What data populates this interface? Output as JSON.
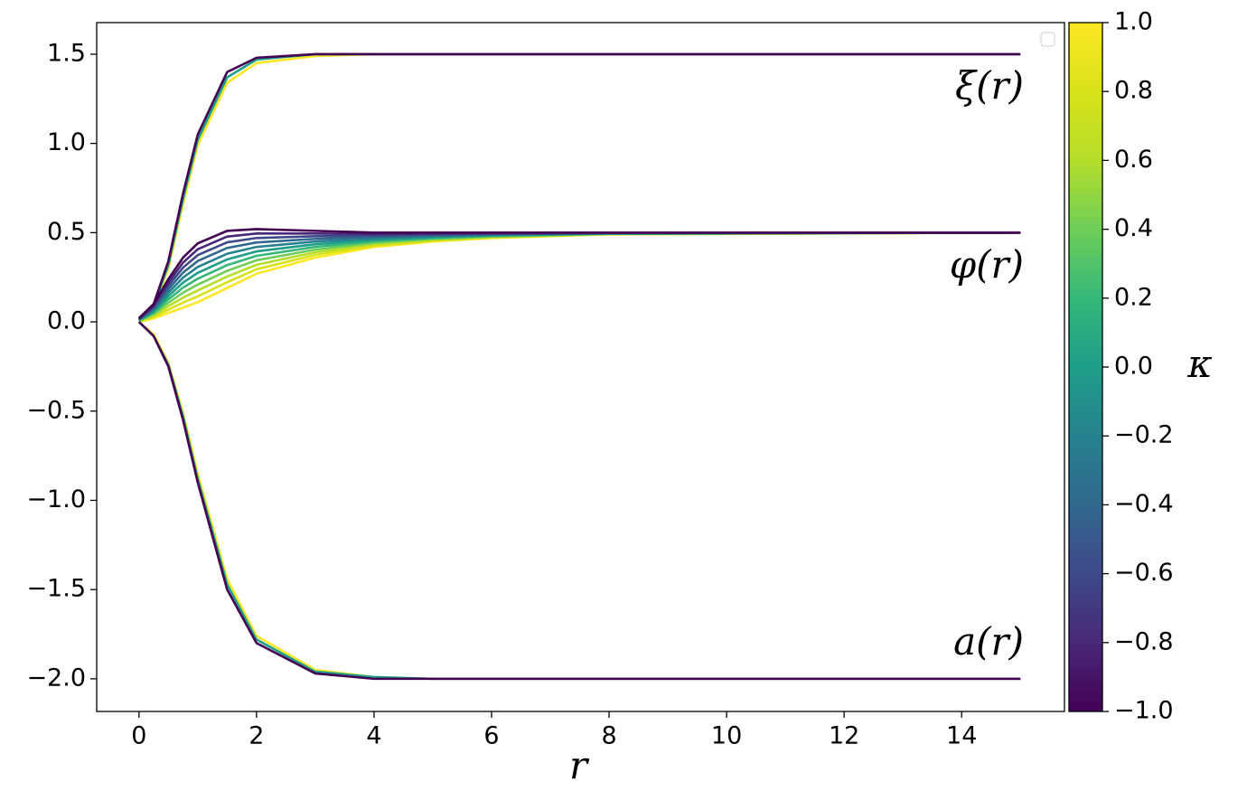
{
  "chart_data": {
    "type": "line",
    "xlabel": "r",
    "annotations": [
      "ξ(r)",
      "φ(r)",
      "a(r)"
    ],
    "x": [
      0,
      0.25,
      0.5,
      0.75,
      1,
      1.5,
      2,
      3,
      4,
      5,
      6,
      8,
      15
    ],
    "xlim": [
      -0.72,
      15.75
    ],
    "xticks": [
      0,
      2,
      4,
      6,
      8,
      10,
      12,
      14
    ],
    "ylim": [
      -2.183,
      1.677
    ],
    "yticks": [
      {
        "value": -2,
        "label": "−2.0"
      },
      {
        "value": -1.5,
        "label": "−1.5"
      },
      {
        "value": -1,
        "label": "−1.0"
      },
      {
        "value": -0.5,
        "label": "−0.5"
      },
      {
        "value": 0,
        "label": "0.0"
      },
      {
        "value": 0.5,
        "label": "0.5"
      },
      {
        "value": 1,
        "label": "1.0"
      },
      {
        "value": 1.5,
        "label": "1.5"
      }
    ],
    "series": [
      {
        "color": "#fde725",
        "values": [
          0,
          0.08,
          0.3,
          0.66,
          0.99,
          1.34,
          1.45,
          1.49,
          1.5,
          1.5,
          1.5,
          1.5,
          1.5
        ]
      },
      {
        "color": "#fde725",
        "values": [
          0,
          -0.07,
          -0.23,
          -0.51,
          -0.85,
          -1.44,
          -1.76,
          -1.95,
          -1.99,
          -2,
          -2,
          -2,
          -2
        ]
      },
      {
        "color": "#fde725",
        "values": [
          0,
          0.02,
          0.05,
          0.08,
          0.11,
          0.19,
          0.27,
          0.36,
          0.42,
          0.45,
          0.47,
          0.49,
          0.5
        ]
      },
      {
        "color": "#d8e219",
        "values": [
          0.002,
          0.028,
          0.069,
          0.108,
          0.143,
          0.222,
          0.295,
          0.375,
          0.428,
          0.455,
          0.473,
          0.491,
          0.5
        ]
      },
      {
        "color": "#b5de2b",
        "values": [
          0.004,
          0.036,
          0.088,
          0.136,
          0.176,
          0.254,
          0.32,
          0.39,
          0.436,
          0.46,
          0.476,
          0.492,
          0.5
        ]
      },
      {
        "color": "#6ece58",
        "values": [
          0.006,
          0.044,
          0.107,
          0.164,
          0.209,
          0.286,
          0.345,
          0.405,
          0.444,
          0.465,
          0.479,
          0.493,
          0.5
        ]
      },
      {
        "color": "#35b779",
        "values": [
          0.008,
          0.052,
          0.126,
          0.192,
          0.242,
          0.318,
          0.37,
          0.42,
          0.452,
          0.47,
          0.482,
          0.494,
          0.5
        ]
      },
      {
        "color": "#1f9e89",
        "values": [
          0.01,
          0.09,
          0.32,
          0.69,
          1.02,
          1.37,
          1.47,
          1.5,
          1.5,
          1.5,
          1.5,
          1.5,
          1.5
        ]
      },
      {
        "color": "#1f9e89",
        "values": [
          0,
          -0.08,
          -0.24,
          -0.53,
          -0.88,
          -1.47,
          -1.78,
          -1.96,
          -1.99,
          -2,
          -2,
          -2,
          -2
        ]
      },
      {
        "color": "#1f9e89",
        "values": [
          0.01,
          0.06,
          0.145,
          0.22,
          0.275,
          0.35,
          0.395,
          0.435,
          0.46,
          0.475,
          0.485,
          0.495,
          0.5
        ]
      },
      {
        "color": "#26828e",
        "values": [
          0.012,
          0.068,
          0.164,
          0.248,
          0.308,
          0.382,
          0.42,
          0.45,
          0.468,
          0.48,
          0.488,
          0.496,
          0.5
        ]
      },
      {
        "color": "#31688e",
        "values": [
          0.014,
          0.076,
          0.183,
          0.276,
          0.341,
          0.414,
          0.445,
          0.465,
          0.476,
          0.485,
          0.491,
          0.497,
          0.5
        ]
      },
      {
        "color": "#3e4989",
        "values": [
          0.016,
          0.084,
          0.202,
          0.304,
          0.374,
          0.446,
          0.47,
          0.48,
          0.484,
          0.49,
          0.494,
          0.498,
          0.5
        ]
      },
      {
        "color": "#482878",
        "values": [
          0.018,
          0.092,
          0.221,
          0.332,
          0.407,
          0.478,
          0.495,
          0.495,
          0.492,
          0.495,
          0.497,
          0.499,
          0.5
        ]
      },
      {
        "color": "#440154",
        "values": [
          0.02,
          0.1,
          0.24,
          0.36,
          0.44,
          0.51,
          0.52,
          0.51,
          0.5,
          0.5,
          0.5,
          0.5,
          0.5
        ]
      },
      {
        "color": "#440154",
        "values": [
          0.02,
          0.1,
          0.34,
          0.72,
          1.05,
          1.4,
          1.48,
          1.5,
          1.5,
          1.5,
          1.5,
          1.5,
          1.5
        ]
      },
      {
        "color": "#440154",
        "values": [
          0,
          -0.08,
          -0.25,
          -0.55,
          -0.9,
          -1.5,
          -1.8,
          -1.97,
          -2,
          -2,
          -2,
          -2,
          -2
        ]
      }
    ],
    "colorbar": {
      "label": "κ",
      "lim": [
        -1,
        1
      ],
      "colors": [
        "#440154",
        "#482878",
        "#3e4989",
        "#31688e",
        "#26828e",
        "#1f9e89",
        "#35b779",
        "#6ece58",
        "#b5de2b",
        "#d8e219",
        "#fde725"
      ],
      "ticks": [
        {
          "value": -1,
          "label": "−1.0"
        },
        {
          "value": -0.8,
          "label": "−0.8"
        },
        {
          "value": -0.6,
          "label": "−0.6"
        },
        {
          "value": -0.4,
          "label": "−0.4"
        },
        {
          "value": -0.2,
          "label": "−0.2"
        },
        {
          "value": 0,
          "label": "0.0"
        },
        {
          "value": 0.2,
          "label": "0.2"
        },
        {
          "value": 0.4,
          "label": "0.4"
        },
        {
          "value": 0.6,
          "label": "0.6"
        },
        {
          "value": 0.8,
          "label": "0.8"
        },
        {
          "value": 1,
          "label": "1.0"
        }
      ]
    }
  }
}
